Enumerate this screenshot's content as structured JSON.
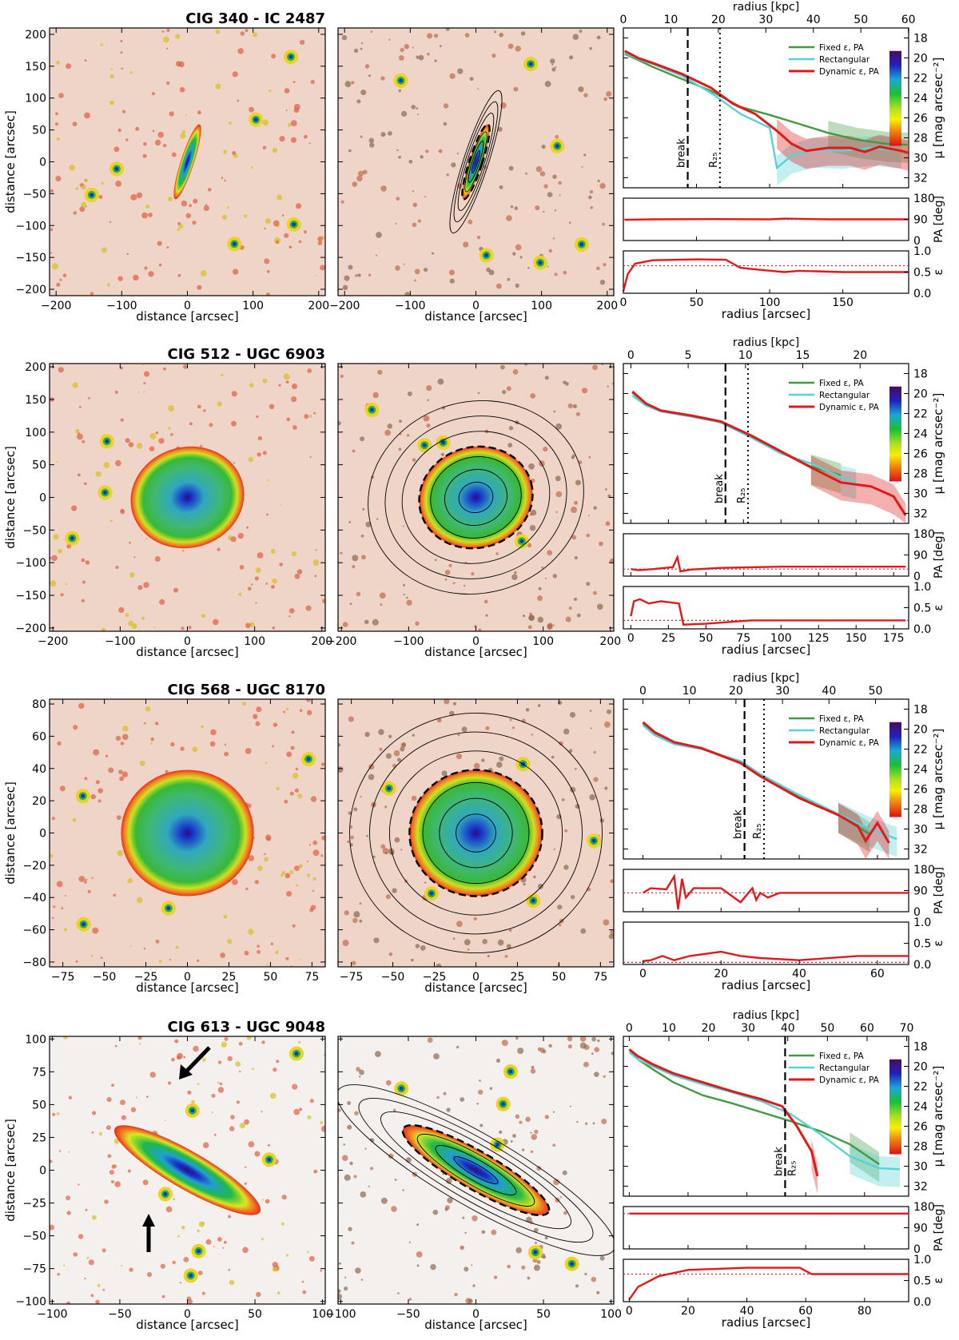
{
  "figure": {
    "image_axis_label": "distance [arcsec]",
    "radius_top_label": "radius [kpc]",
    "radius_bottom_label": "radius [arcsec]",
    "mu_label": "μ [mag arcsec⁻²]",
    "pa_label": "PA [deg]",
    "eps_label": "ε",
    "legend": [
      {
        "name": "Fixed ε, PA",
        "color": "#3f9b3f"
      },
      {
        "name": "Rectangular",
        "color": "#57d2d8"
      },
      {
        "name": "Dynamic ε, PA",
        "color": "#e01a1a"
      }
    ],
    "colorbar_ticks": [
      "18",
      "20",
      "22",
      "24",
      "26",
      "28",
      "30",
      "32"
    ],
    "break_label": "break",
    "r25_label": "R₂₅"
  },
  "chart_data": [
    {
      "type": "line",
      "title": "CIG 340  -  IC 2487",
      "image_lim": [
        -210,
        210
      ],
      "image_ticks": [
        -200,
        -150,
        -100,
        -50,
        0,
        50,
        100,
        150,
        200
      ],
      "image_xticks": [
        -200,
        -100,
        0,
        100,
        200
      ],
      "galaxy": {
        "rx": 10,
        "ry": 60,
        "angle": 18,
        "style": "edge"
      },
      "radius_arcsec_lim": [
        0,
        195
      ],
      "radius_arcsec_ticks": [
        0,
        50,
        100,
        150
      ],
      "radius_kpc_ticks": [
        0,
        10,
        20,
        30,
        40,
        50,
        60
      ],
      "kpc_per_arcsec": 0.308,
      "break_arcsec": 44,
      "r25_arcsec": 66,
      "break_is_r25": false,
      "series": [
        {
          "name": "Fixed ε, PA",
          "points": [
            [
              1,
              19.6
            ],
            [
              10,
              20.2
            ],
            [
              20,
              20.9
            ],
            [
              40,
              22.1
            ],
            [
              60,
              23.3
            ],
            [
              80,
              24.9
            ],
            [
              100,
              25.7
            ],
            [
              120,
              26.6
            ],
            [
              140,
              27.5
            ],
            [
              160,
              28.2
            ],
            [
              180,
              28.6
            ],
            [
              195,
              28.7
            ]
          ]
        },
        {
          "name": "Rectangular",
          "points": [
            [
              1,
              19.5
            ],
            [
              10,
              20.1
            ],
            [
              20,
              20.6
            ],
            [
              40,
              21.8
            ],
            [
              60,
              23.5
            ],
            [
              80,
              25.6
            ],
            [
              100,
              27.0
            ],
            [
              105,
              31.0
            ],
            [
              115,
              29.8
            ],
            [
              130,
              29.2
            ],
            [
              150,
              29.3
            ],
            [
              170,
              29.0
            ],
            [
              190,
              29.3
            ]
          ]
        },
        {
          "name": "Dynamic ε, PA",
          "points": [
            [
              1,
              19.3
            ],
            [
              10,
              20.0
            ],
            [
              20,
              20.5
            ],
            [
              40,
              21.6
            ],
            [
              60,
              23.0
            ],
            [
              75,
              24.6
            ],
            [
              90,
              25.6
            ],
            [
              105,
              27.3
            ],
            [
              115,
              28.6
            ],
            [
              125,
              29.3
            ],
            [
              140,
              29.0
            ],
            [
              155,
              29.0
            ],
            [
              165,
              29.4
            ],
            [
              175,
              28.9
            ],
            [
              190,
              29.3
            ],
            [
              195,
              29.5
            ]
          ]
        }
      ],
      "pa": [
        [
          1,
          88
        ],
        [
          20,
          90
        ],
        [
          60,
          91
        ],
        [
          100,
          90
        ],
        [
          110,
          93
        ],
        [
          140,
          90
        ],
        [
          195,
          90
        ]
      ],
      "pa_ref": 90,
      "eps": [
        [
          0,
          0.05
        ],
        [
          3,
          0.45
        ],
        [
          8,
          0.7
        ],
        [
          20,
          0.78
        ],
        [
          50,
          0.8
        ],
        [
          70,
          0.79
        ],
        [
          80,
          0.6
        ],
        [
          95,
          0.55
        ],
        [
          110,
          0.5
        ],
        [
          120,
          0.53
        ],
        [
          150,
          0.5
        ],
        [
          195,
          0.5
        ]
      ],
      "eps_ref": 0.65
    },
    {
      "type": "line",
      "title": "CIG 512  -  UGC  6903",
      "image_lim": [
        -205,
        205
      ],
      "image_ticks": [
        -200,
        -150,
        -100,
        -50,
        0,
        50,
        100,
        150,
        200
      ],
      "image_xticks": [
        -200,
        -100,
        0,
        100,
        200
      ],
      "galaxy": {
        "rx": 85,
        "ry": 75,
        "angle": -15,
        "style": "ring"
      },
      "radius_arcsec_lim": [
        -5,
        185
      ],
      "radius_arcsec_ticks": [
        0,
        25,
        50,
        75,
        100,
        125,
        150,
        175
      ],
      "radius_kpc_ticks": [
        0,
        5,
        10,
        15,
        20
      ],
      "kpc_per_arcsec": 0.131,
      "break_arcsec": 63,
      "r25_arcsec": 78,
      "break_is_r25": false,
      "series": [
        {
          "name": "Fixed ε, PA",
          "points": [
            [
              1,
              19.9
            ],
            [
              10,
              21.0
            ],
            [
              20,
              21.7
            ],
            [
              40,
              22.2
            ],
            [
              60,
              22.9
            ],
            [
              80,
              24.3
            ],
            [
              100,
              25.9
            ],
            [
              120,
              27.3
            ],
            [
              140,
              28.2
            ]
          ]
        },
        {
          "name": "Rectangular",
          "points": [
            [
              1,
              20.2
            ],
            [
              10,
              21.2
            ],
            [
              20,
              21.8
            ],
            [
              40,
              22.3
            ],
            [
              60,
              22.9
            ],
            [
              80,
              24.4
            ],
            [
              100,
              26.0
            ],
            [
              120,
              27.0
            ],
            [
              140,
              28.4
            ],
            [
              150,
              28.8
            ]
          ]
        },
        {
          "name": "Dynamic ε, PA",
          "points": [
            [
              1,
              19.8
            ],
            [
              10,
              21.0
            ],
            [
              20,
              21.7
            ],
            [
              40,
              22.2
            ],
            [
              60,
              22.8
            ],
            [
              80,
              24.2
            ],
            [
              100,
              25.8
            ],
            [
              120,
              27.4
            ],
            [
              140,
              28.9
            ],
            [
              160,
              29.3
            ],
            [
              175,
              30.3
            ],
            [
              183,
              32.2
            ]
          ]
        }
      ],
      "pa": [
        [
          0,
          30
        ],
        [
          5,
          25
        ],
        [
          15,
          30
        ],
        [
          28,
          38
        ],
        [
          31,
          80
        ],
        [
          33,
          20
        ],
        [
          40,
          28
        ],
        [
          60,
          35
        ],
        [
          100,
          40
        ],
        [
          183,
          40
        ]
      ],
      "pa_ref": 30,
      "eps": [
        [
          0,
          0.3
        ],
        [
          2,
          0.65
        ],
        [
          6,
          0.7
        ],
        [
          12,
          0.6
        ],
        [
          20,
          0.65
        ],
        [
          32,
          0.6
        ],
        [
          35,
          0.1
        ],
        [
          50,
          0.12
        ],
        [
          80,
          0.2
        ],
        [
          183,
          0.2
        ]
      ],
      "eps_ref": 0.2
    },
    {
      "type": "line",
      "title": "CIG 568  -  UGC  8170",
      "image_lim": [
        -83,
        83
      ],
      "image_ticks": [
        -80,
        -60,
        -40,
        -20,
        0,
        20,
        40,
        60,
        80
      ],
      "image_xticks": [
        -75,
        -50,
        -25,
        0,
        25,
        50,
        75
      ],
      "galaxy": {
        "rx": 40,
        "ry": 38,
        "angle": 0,
        "style": "ring"
      },
      "radius_arcsec_lim": [
        -5,
        68
      ],
      "radius_arcsec_ticks": [
        0,
        20,
        40,
        60
      ],
      "radius_kpc_ticks": [
        0,
        10,
        20,
        30,
        40,
        50
      ],
      "kpc_per_arcsec": 0.84,
      "break_arcsec": 26,
      "r25_arcsec": 31,
      "break_is_r25": false,
      "series": [
        {
          "name": "Fixed ε, PA",
          "points": [
            [
              0,
              19.4
            ],
            [
              3,
              20.4
            ],
            [
              8,
              21.3
            ],
            [
              15,
              21.9
            ],
            [
              25,
              23.3
            ],
            [
              30,
              24.6
            ],
            [
              40,
              26.8
            ],
            [
              50,
              28.6
            ],
            [
              58,
              30.5
            ]
          ]
        },
        {
          "name": "Rectangular",
          "points": [
            [
              0,
              19.6
            ],
            [
              3,
              20.6
            ],
            [
              8,
              21.5
            ],
            [
              15,
              22.0
            ],
            [
              25,
              23.2
            ],
            [
              30,
              24.5
            ],
            [
              40,
              26.6
            ],
            [
              50,
              28.5
            ],
            [
              58,
              30.0
            ],
            [
              65,
              31.0
            ]
          ]
        },
        {
          "name": "Dynamic ε, PA",
          "points": [
            [
              0,
              19.3
            ],
            [
              3,
              20.3
            ],
            [
              8,
              21.3
            ],
            [
              15,
              21.9
            ],
            [
              25,
              23.4
            ],
            [
              30,
              24.7
            ],
            [
              40,
              26.9
            ],
            [
              50,
              28.6
            ],
            [
              55,
              29.7
            ],
            [
              57,
              31.2
            ],
            [
              60,
              29.4
            ],
            [
              63,
              31.4
            ]
          ]
        }
      ],
      "pa": [
        [
          0,
          80
        ],
        [
          2,
          100
        ],
        [
          6,
          95
        ],
        [
          8,
          150
        ],
        [
          9,
          10
        ],
        [
          10,
          140
        ],
        [
          11,
          60
        ],
        [
          13,
          100
        ],
        [
          20,
          100
        ],
        [
          25,
          40
        ],
        [
          28,
          100
        ],
        [
          29,
          50
        ],
        [
          30,
          80
        ],
        [
          32,
          60
        ],
        [
          35,
          80
        ],
        [
          68,
          80
        ]
      ],
      "pa_ref": 80,
      "eps": [
        [
          0,
          0.08
        ],
        [
          2,
          0.1
        ],
        [
          5,
          0.2
        ],
        [
          8,
          0.1
        ],
        [
          12,
          0.2
        ],
        [
          20,
          0.3
        ],
        [
          25,
          0.2
        ],
        [
          30,
          0.15
        ],
        [
          40,
          0.1
        ],
        [
          55,
          0.2
        ],
        [
          68,
          0.2
        ]
      ],
      "eps_ref": 0.05
    },
    {
      "type": "line",
      "title": "CIG 613  -  UGC  9048",
      "image_lim": [
        -102,
        102
      ],
      "image_ticks": [
        -100,
        -75,
        -50,
        -25,
        0,
        25,
        50,
        75,
        100
      ],
      "image_xticks": [
        -100,
        -50,
        0,
        50,
        100
      ],
      "galaxy": {
        "rx": 62,
        "ry": 14,
        "angle": 30,
        "style": "edge"
      },
      "radius_arcsec_lim": [
        -2,
        95
      ],
      "radius_arcsec_ticks": [
        0,
        20,
        40,
        60,
        80
      ],
      "radius_kpc_ticks": [
        0,
        10,
        20,
        30,
        40,
        50,
        60,
        70
      ],
      "kpc_per_arcsec": 0.742,
      "break_arcsec": 53,
      "r25_arcsec": 53,
      "break_is_r25": true,
      "series": [
        {
          "name": "Fixed ε, PA",
          "points": [
            [
              0,
              18.3
            ],
            [
              3,
              19.3
            ],
            [
              8,
              20.3
            ],
            [
              15,
              21.6
            ],
            [
              25,
              22.9
            ],
            [
              35,
              23.7
            ],
            [
              45,
              24.6
            ],
            [
              55,
              25.5
            ],
            [
              65,
              26.5
            ],
            [
              75,
              27.8
            ],
            [
              85,
              29.8
            ]
          ]
        },
        {
          "name": "Rectangular",
          "points": [
            [
              0,
              18.6
            ],
            [
              3,
              19.3
            ],
            [
              8,
              20.0
            ],
            [
              15,
              20.9
            ],
            [
              25,
              21.8
            ],
            [
              35,
              22.6
            ],
            [
              45,
              23.5
            ],
            [
              55,
              24.8
            ],
            [
              65,
              26.8
            ],
            [
              75,
              29.0
            ],
            [
              85,
              30.2
            ],
            [
              92,
              30.3
            ]
          ]
        },
        {
          "name": "Dynamic ε, PA",
          "points": [
            [
              0,
              18.3
            ],
            [
              3,
              19.0
            ],
            [
              8,
              19.8
            ],
            [
              15,
              20.7
            ],
            [
              25,
              21.6
            ],
            [
              35,
              22.5
            ],
            [
              45,
              23.3
            ],
            [
              52,
              24.0
            ],
            [
              57,
              26.0
            ],
            [
              62,
              28.5
            ],
            [
              64,
              31.0
            ]
          ]
        }
      ],
      "pa": [
        [
          0,
          150
        ],
        [
          95,
          150
        ]
      ],
      "pa_ref": 150,
      "eps": [
        [
          0,
          0.05
        ],
        [
          3,
          0.35
        ],
        [
          10,
          0.6
        ],
        [
          20,
          0.75
        ],
        [
          40,
          0.8
        ],
        [
          58,
          0.8
        ],
        [
          62,
          0.65
        ],
        [
          95,
          0.65
        ]
      ],
      "eps_ref": 0.65
    }
  ]
}
